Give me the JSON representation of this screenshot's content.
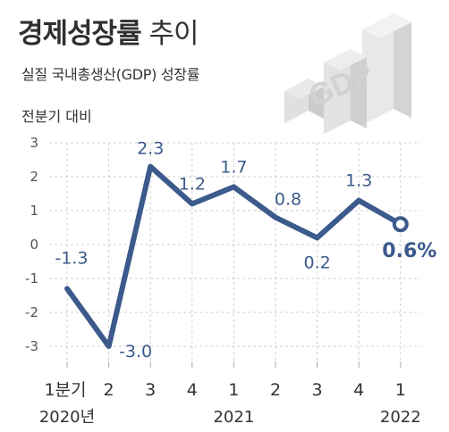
{
  "header": {
    "title_bold": "경제성장률",
    "title_light": "추이",
    "subtitle": "실질 국내총생산(GDP) 성장률",
    "unit": "전분기 대비",
    "logo_text": "GDP"
  },
  "chart_data": {
    "type": "line",
    "categories": [
      "1분기",
      "2",
      "3",
      "4",
      "1",
      "2",
      "3",
      "4",
      "1"
    ],
    "year_labels": [
      "2020년",
      "",
      "",
      "",
      "2021",
      "",
      "",
      "",
      "2022"
    ],
    "values": [
      -1.3,
      -3.0,
      2.3,
      1.2,
      1.7,
      0.8,
      0.2,
      1.3,
      0.6
    ],
    "data_labels": [
      "-1.3",
      "-3.0",
      "2.3",
      "1.2",
      "1.7",
      "0.8",
      "0.2",
      "1.3",
      "0.6%"
    ],
    "ylim": [
      -3,
      3
    ],
    "yticks": [
      "3",
      "2",
      "1",
      "0",
      "-1",
      "-2",
      "-3"
    ],
    "grid": true,
    "colors": {
      "line": "#3c5a8c",
      "label": "#3c5a8c",
      "grid": "#d0d0d0",
      "tick": "#aaaaaa"
    }
  }
}
